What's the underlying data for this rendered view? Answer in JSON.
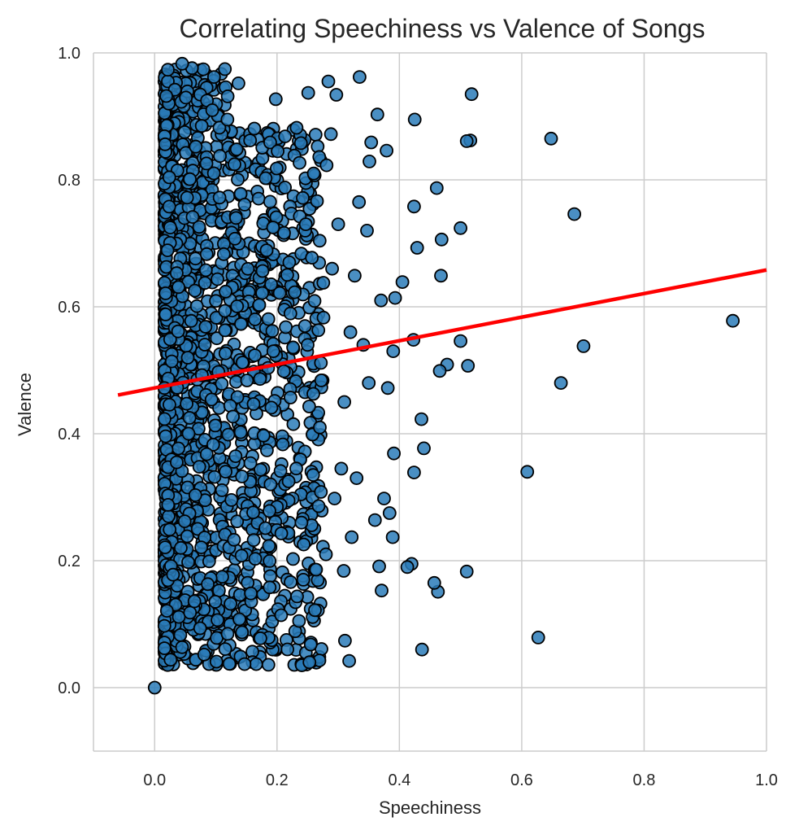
{
  "chart_data": {
    "type": "scatter",
    "title": "Correlating Speechiness vs Valence of Songs",
    "xlabel": "Speechiness",
    "ylabel": "Valence",
    "xlim": [
      -0.1,
      1.0
    ],
    "ylim": [
      -0.1,
      1.0
    ],
    "xticks": [
      "0.0",
      "0.2",
      "0.4",
      "0.6",
      "0.8",
      "1.0"
    ],
    "yticks": [
      "0.0",
      "0.2",
      "0.4",
      "0.6",
      "0.8",
      "1.0"
    ],
    "grid": true,
    "legend": "none",
    "colors": {
      "points": "#2a7bb8",
      "point_edge": "#000000",
      "trend": "#ff0000",
      "grid": "#cccccc"
    },
    "trend_line": {
      "x": [
        -0.06,
        1.0
      ],
      "y": [
        0.461,
        0.658
      ]
    },
    "series": [
      {
        "points": [
          [
            0.0,
            0.0
          ],
          [
            0.945,
            0.578
          ],
          [
            0.701,
            0.538
          ],
          [
            0.686,
            0.746
          ],
          [
            0.664,
            0.48
          ],
          [
            0.648,
            0.865
          ],
          [
            0.627,
            0.079
          ],
          [
            0.609,
            0.34
          ],
          [
            0.518,
            0.935
          ],
          [
            0.516,
            0.862
          ],
          [
            0.512,
            0.507
          ],
          [
            0.51,
            0.861
          ],
          [
            0.51,
            0.183
          ],
          [
            0.5,
            0.546
          ],
          [
            0.5,
            0.724
          ],
          [
            0.478,
            0.509
          ],
          [
            0.468,
            0.649
          ],
          [
            0.469,
            0.706
          ],
          [
            0.466,
            0.499
          ],
          [
            0.461,
            0.787
          ],
          [
            0.463,
            0.151
          ],
          [
            0.457,
            0.165
          ],
          [
            0.44,
            0.377
          ],
          [
            0.437,
            0.06
          ],
          [
            0.436,
            0.423
          ],
          [
            0.429,
            0.693
          ],
          [
            0.425,
            0.895
          ],
          [
            0.424,
            0.758
          ],
          [
            0.423,
            0.548
          ],
          [
            0.424,
            0.339
          ],
          [
            0.42,
            0.195
          ],
          [
            0.413,
            0.19
          ],
          [
            0.405,
            0.639
          ],
          [
            0.393,
            0.614
          ],
          [
            0.391,
            0.369
          ],
          [
            0.389,
            0.237
          ],
          [
            0.384,
            0.275
          ],
          [
            0.381,
            0.472
          ],
          [
            0.379,
            0.846
          ],
          [
            0.375,
            0.298
          ],
          [
            0.371,
            0.153
          ],
          [
            0.367,
            0.191
          ],
          [
            0.364,
            0.903
          ],
          [
            0.36,
            0.264
          ],
          [
            0.354,
            0.859
          ],
          [
            0.351,
            0.829
          ],
          [
            0.347,
            0.72
          ],
          [
            0.341,
            0.54
          ],
          [
            0.335,
            0.962
          ],
          [
            0.334,
            0.765
          ],
          [
            0.327,
            0.649
          ],
          [
            0.322,
            0.237
          ],
          [
            0.318,
            0.042
          ],
          [
            0.311,
            0.074
          ],
          [
            0.309,
            0.184
          ],
          [
            0.305,
            0.345
          ],
          [
            0.297,
            0.934
          ],
          [
            0.294,
            0.298
          ],
          [
            0.288,
            0.872
          ],
          [
            0.284,
            0.955
          ],
          [
            0.281,
            0.823
          ],
          [
            0.276,
            0.583
          ],
          [
            0.268,
            0.286
          ],
          [
            0.262,
            0.122
          ],
          [
            0.259,
            0.335
          ],
          [
            0.255,
            0.068
          ],
          [
            0.253,
            0.04
          ],
          [
            0.251,
            0.937
          ],
          [
            0.247,
            0.73
          ],
          [
            0.243,
            0.17
          ],
          [
            0.236,
            0.105
          ],
          [
            0.232,
            0.882
          ],
          [
            0.229,
            0.623
          ],
          [
            0.222,
            0.457
          ],
          [
            0.219,
            0.325
          ],
          [
            0.213,
            0.788
          ],
          [
            0.207,
            0.243
          ],
          [
            0.201,
            0.845
          ],
          [
            0.198,
            0.927
          ],
          [
            0.194,
            0.53
          ],
          [
            0.188,
            0.158
          ],
          [
            0.186,
            0.036
          ],
          [
            0.183,
            0.689
          ],
          [
            0.178,
            0.397
          ],
          [
            0.171,
            0.603
          ],
          [
            0.166,
            0.037
          ],
          [
            0.161,
            0.276
          ],
          [
            0.156,
            0.862
          ],
          [
            0.151,
            0.484
          ],
          [
            0.147,
            0.037
          ],
          [
            0.142,
            0.208
          ],
          [
            0.137,
            0.952
          ],
          [
            0.133,
            0.74
          ],
          [
            0.128,
            0.427
          ],
          [
            0.124,
            0.132
          ],
          [
            0.119,
            0.895
          ],
          [
            0.115,
            0.563
          ],
          [
            0.11,
            0.311
          ],
          [
            0.106,
            0.772
          ],
          [
            0.101,
            0.041
          ],
          [
            0.097,
            0.962
          ],
          [
            0.093,
            0.454
          ],
          [
            0.089,
            0.199
          ],
          [
            0.085,
            0.683
          ],
          [
            0.081,
            0.052
          ],
          [
            0.077,
            0.885
          ],
          [
            0.073,
            0.348
          ],
          [
            0.069,
            0.601
          ],
          [
            0.065,
            0.136
          ],
          [
            0.061,
            0.976
          ],
          [
            0.057,
            0.425
          ],
          [
            0.053,
            0.772
          ],
          [
            0.049,
            0.262
          ],
          [
            0.045,
            0.983
          ],
          [
            0.042,
            0.083
          ],
          [
            0.039,
            0.631
          ],
          [
            0.036,
            0.355
          ],
          [
            0.033,
            0.942
          ],
          [
            0.03,
            0.178
          ],
          [
            0.028,
            0.514
          ],
          [
            0.026,
            0.044
          ],
          [
            0.024,
            0.804
          ],
          [
            0.022,
            0.288
          ],
          [
            0.021,
            0.689
          ],
          [
            0.02,
            0.121
          ],
          [
            0.019,
            0.932
          ],
          [
            0.018,
            0.396
          ],
          [
            0.018,
            0.588
          ],
          [
            0.017,
            0.221
          ],
          [
            0.017,
            0.856
          ],
          [
            0.016,
            0.472
          ],
          [
            0.016,
            0.062
          ],
          [
            0.27,
            0.41
          ],
          [
            0.25,
            0.54
          ],
          [
            0.29,
            0.66
          ],
          [
            0.31,
            0.45
          ],
          [
            0.33,
            0.33
          ],
          [
            0.35,
            0.48
          ],
          [
            0.37,
            0.61
          ],
          [
            0.39,
            0.53
          ],
          [
            0.3,
            0.73
          ],
          [
            0.26,
            0.81
          ],
          [
            0.24,
            0.26
          ],
          [
            0.22,
            0.67
          ],
          [
            0.28,
            0.21
          ],
          [
            0.32,
            0.56
          ]
        ]
      }
    ]
  }
}
